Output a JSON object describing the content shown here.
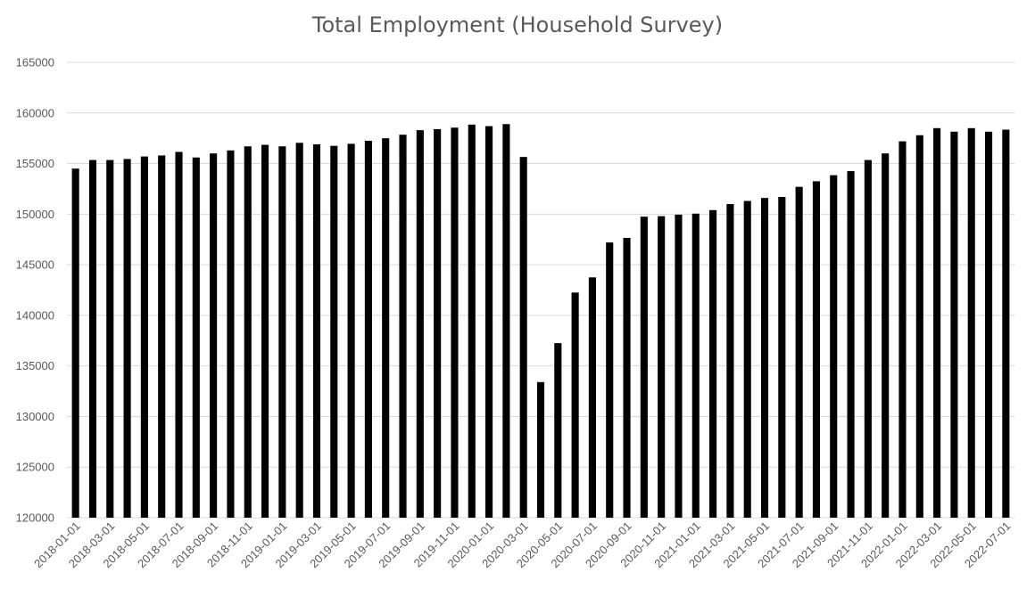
{
  "chart_data": {
    "type": "bar",
    "title": "Total Employment (Household Survey)",
    "xlabel": "",
    "ylabel": "",
    "ylim": [
      120000,
      165000
    ],
    "yticks": [
      120000,
      125000,
      130000,
      135000,
      140000,
      145000,
      150000,
      155000,
      160000,
      165000
    ],
    "grid": true,
    "legend": "none",
    "bar_color": "#000000",
    "categories": [
      "2018-01-01",
      "2018-02-01",
      "2018-03-01",
      "2018-04-01",
      "2018-05-01",
      "2018-06-01",
      "2018-07-01",
      "2018-08-01",
      "2018-09-01",
      "2018-10-01",
      "2018-11-01",
      "2018-12-01",
      "2019-01-01",
      "2019-02-01",
      "2019-03-01",
      "2019-04-01",
      "2019-05-01",
      "2019-06-01",
      "2019-07-01",
      "2019-08-01",
      "2019-09-01",
      "2019-10-01",
      "2019-11-01",
      "2019-12-01",
      "2020-01-01",
      "2020-02-01",
      "2020-03-01",
      "2020-04-01",
      "2020-05-01",
      "2020-06-01",
      "2020-07-01",
      "2020-08-01",
      "2020-09-01",
      "2020-10-01",
      "2020-11-01",
      "2020-12-01",
      "2021-01-01",
      "2021-02-01",
      "2021-03-01",
      "2021-04-01",
      "2021-05-01",
      "2021-06-01",
      "2021-07-01",
      "2021-08-01",
      "2021-09-01",
      "2021-10-01",
      "2021-11-01",
      "2021-12-01",
      "2022-01-01",
      "2022-02-01",
      "2022-03-01",
      "2022-04-01",
      "2022-05-01",
      "2022-06-01",
      "2022-07-01"
    ],
    "xtick_labels": [
      "2018-01-01",
      "2018-03-01",
      "2018-05-01",
      "2018-07-01",
      "2018-09-01",
      "2018-11-01",
      "2019-01-01",
      "2019-03-01",
      "2019-05-01",
      "2019-07-01",
      "2019-09-01",
      "2019-11-01",
      "2020-01-01",
      "2020-03-01",
      "2020-05-01",
      "2020-07-01",
      "2020-09-01",
      "2020-11-01",
      "2021-01-01",
      "2021-03-01",
      "2021-05-01",
      "2021-07-01",
      "2021-09-01",
      "2021-11-01",
      "2022-01-01",
      "2022-03-01",
      "2022-05-01",
      "2022-07-01"
    ],
    "values": [
      154500,
      155350,
      155350,
      155450,
      155700,
      155800,
      156150,
      155600,
      156000,
      156300,
      156700,
      156850,
      156700,
      157050,
      156900,
      156750,
      156950,
      157250,
      157500,
      157850,
      158300,
      158400,
      158550,
      158850,
      158700,
      158900,
      155650,
      133400,
      137250,
      142250,
      143750,
      147200,
      147650,
      149750,
      149800,
      149950,
      150050,
      150400,
      151000,
      151300,
      151600,
      151700,
      152700,
      153250,
      153850,
      154250,
      155350,
      156000,
      157200,
      157800,
      158500,
      158150,
      158500,
      158150,
      158350
    ]
  }
}
